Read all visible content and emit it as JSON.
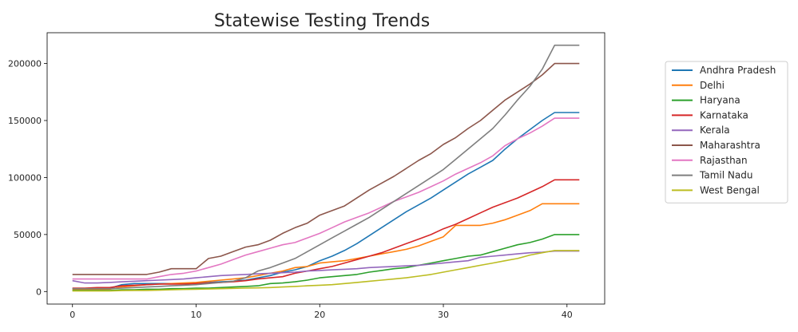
{
  "chart_data": {
    "type": "line",
    "title": "Statewise Testing Trends",
    "xlabel": "",
    "ylabel": "",
    "xlim": [
      -2.05,
      43.05
    ],
    "ylim": [
      -11000,
      227000
    ],
    "xticks": [
      0,
      10,
      20,
      30,
      40
    ],
    "yticks": [
      0,
      50000,
      100000,
      150000,
      200000
    ],
    "grid": false,
    "legend_position": "right",
    "x": [
      0,
      1,
      2,
      3,
      4,
      5,
      6,
      7,
      8,
      9,
      10,
      11,
      12,
      13,
      14,
      15,
      16,
      17,
      18,
      19,
      20,
      21,
      22,
      23,
      24,
      25,
      26,
      27,
      28,
      29,
      30,
      31,
      32,
      33,
      34,
      35,
      36,
      37,
      38,
      39,
      40,
      41
    ],
    "series": [
      {
        "name": "Andhra Pradesh",
        "color": "#1f77b4",
        "values": [
          2500,
          2500,
          2500,
          2800,
          6000,
          7000,
          7000,
          7000,
          7000,
          7000,
          7500,
          8000,
          8500,
          9000,
          10000,
          12000,
          14000,
          17000,
          19000,
          22000,
          27000,
          31000,
          36000,
          42000,
          49000,
          56000,
          63000,
          70000,
          76000,
          82000,
          89000,
          96000,
          103000,
          109000,
          115000,
          125000,
          134000,
          142000,
          150000,
          157000,
          157000,
          157000
        ]
      },
      {
        "name": "Delhi",
        "color": "#ff7f0e",
        "values": [
          1500,
          1500,
          1500,
          2000,
          4000,
          5000,
          6000,
          6500,
          7000,
          7500,
          8000,
          9000,
          10000,
          11000,
          12000,
          14000,
          16000,
          18000,
          21000,
          22000,
          25000,
          26000,
          27000,
          29000,
          31000,
          33000,
          35000,
          37000,
          40000,
          44000,
          48000,
          58000,
          58000,
          58000,
          60000,
          63000,
          67000,
          71000,
          77000,
          77000,
          77000,
          77000
        ]
      },
      {
        "name": "Haryana",
        "color": "#2ca02c",
        "values": [
          1000,
          1000,
          1000,
          1000,
          1500,
          1500,
          2000,
          2000,
          2500,
          2500,
          3000,
          3000,
          3500,
          4000,
          4500,
          5000,
          7000,
          7500,
          8500,
          10000,
          12000,
          13000,
          14000,
          15000,
          17000,
          18500,
          20000,
          21000,
          23000,
          25000,
          27000,
          29000,
          31000,
          32000,
          35000,
          38000,
          41000,
          43000,
          46000,
          50000,
          50000,
          50000
        ]
      },
      {
        "name": "Karnataka",
        "color": "#d62728",
        "values": [
          3000,
          3000,
          3500,
          3500,
          5000,
          5500,
          6000,
          6500,
          6500,
          6500,
          7000,
          7500,
          8000,
          8500,
          9500,
          11000,
          12000,
          13000,
          16000,
          18000,
          20000,
          22000,
          25000,
          28000,
          31000,
          34000,
          38000,
          42000,
          46000,
          50000,
          55000,
          59000,
          64000,
          69000,
          74000,
          78000,
          82000,
          87000,
          92000,
          98000,
          98000,
          98000
        ]
      },
      {
        "name": "Kerala",
        "color": "#9467bd",
        "values": [
          9500,
          7500,
          7500,
          8000,
          8500,
          9000,
          9500,
          10000,
          10500,
          11000,
          12000,
          13000,
          14000,
          14500,
          15000,
          15500,
          16000,
          16500,
          17000,
          18000,
          18500,
          19000,
          19500,
          20000,
          21000,
          21500,
          22000,
          22500,
          23000,
          24000,
          25000,
          26000,
          27000,
          30000,
          31000,
          32000,
          33000,
          34000,
          34500,
          35500,
          35500,
          35500
        ]
      },
      {
        "name": "Maharashtra",
        "color": "#8c564b",
        "values": [
          15000,
          15000,
          15000,
          15000,
          15000,
          15000,
          15000,
          17000,
          20000,
          20000,
          20000,
          29000,
          31000,
          35000,
          39000,
          41000,
          45000,
          51000,
          56000,
          60000,
          67000,
          71000,
          75000,
          82000,
          89000,
          95000,
          101000,
          108000,
          115000,
          121000,
          129000,
          135000,
          143000,
          150000,
          159000,
          168000,
          175000,
          182000,
          190000,
          200000,
          200000,
          200000
        ]
      },
      {
        "name": "Rajasthan",
        "color": "#e377c2",
        "values": [
          11000,
          11000,
          11000,
          11000,
          11000,
          11000,
          11000,
          13000,
          15000,
          16000,
          18000,
          21000,
          24000,
          28000,
          32000,
          35000,
          38000,
          41000,
          43000,
          47000,
          51000,
          56000,
          61000,
          65000,
          69000,
          74000,
          79000,
          83000,
          87000,
          92000,
          97000,
          103000,
          108000,
          113000,
          119000,
          128000,
          134000,
          139000,
          145000,
          152000,
          152000,
          152000
        ]
      },
      {
        "name": "Tamil Nadu",
        "color": "#7f7f7f",
        "values": [
          2500,
          2500,
          2500,
          2500,
          3000,
          3500,
          4000,
          4500,
          5000,
          5500,
          6000,
          7000,
          8000,
          9000,
          12000,
          18000,
          21000,
          25000,
          29000,
          35000,
          41000,
          47000,
          53000,
          59000,
          65000,
          72000,
          79000,
          86000,
          93000,
          100000,
          107000,
          116000,
          125000,
          134000,
          143000,
          155000,
          168000,
          180000,
          195000,
          216000,
          216000,
          216000
        ]
      },
      {
        "name": "West Bengal",
        "color": "#bcbd22",
        "values": [
          500,
          500,
          500,
          500,
          800,
          1000,
          1000,
          1200,
          1500,
          1800,
          2000,
          2200,
          2500,
          2800,
          3000,
          3200,
          3500,
          4000,
          4500,
          5000,
          5500,
          6000,
          7000,
          8000,
          9000,
          10000,
          11000,
          12000,
          13500,
          15000,
          17000,
          19000,
          21000,
          23000,
          25000,
          27000,
          29000,
          32000,
          34000,
          36000,
          36000,
          36000
        ]
      }
    ]
  }
}
